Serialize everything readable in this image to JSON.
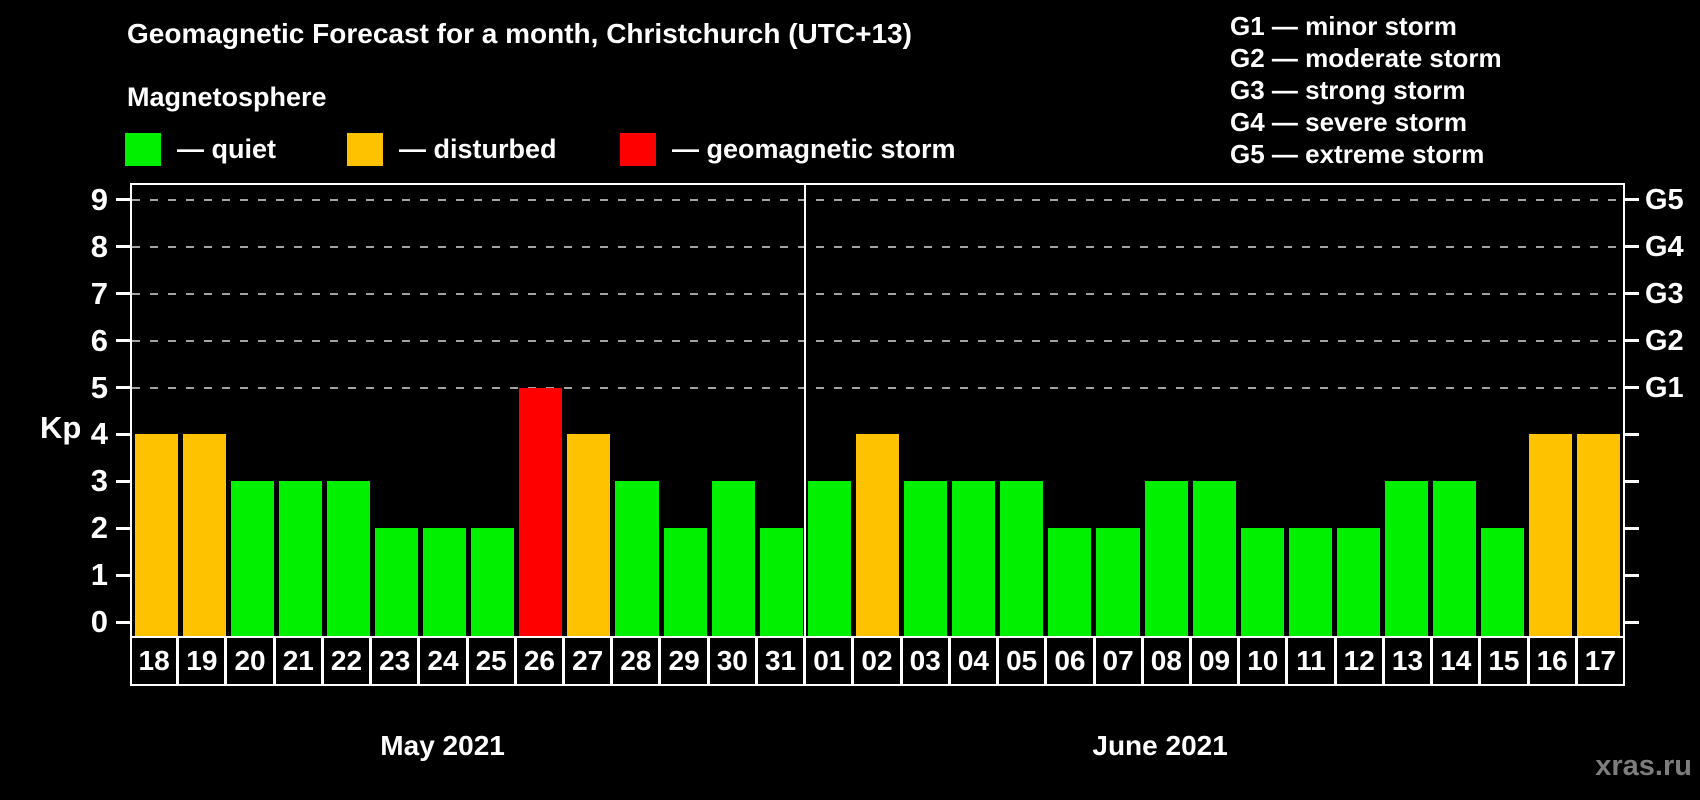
{
  "title": "Geomagnetic Forecast for a month, Christchurch (UTC+13)",
  "subtitle": "Magnetosphere",
  "magnetosphere_legend": [
    {
      "key": "quiet",
      "label": "— quiet",
      "color": "#00f000"
    },
    {
      "key": "disturbed",
      "label": "— disturbed",
      "color": "#ffc200"
    },
    {
      "key": "storm",
      "label": "— geomagnetic storm",
      "color": "#ff0000"
    }
  ],
  "storm_scale_legend": [
    "G1 — minor storm",
    "G2 — moderate storm",
    "G3 — strong storm",
    "G4 — severe storm",
    "G5 — extreme storm"
  ],
  "watermark": "xras.ru",
  "chart_data": {
    "type": "bar",
    "title": "Geomagnetic Forecast for a month, Christchurch (UTC+13)",
    "ylabel": "Kp",
    "yticks": [
      0,
      1,
      2,
      3,
      4,
      5,
      6,
      7,
      8,
      9
    ],
    "ylim": [
      0,
      9.5
    ],
    "grid": "dashed horizontal lines at Kp 5-9 only",
    "gridlines_at_kp": [
      5,
      6,
      7,
      8,
      9
    ],
    "right_axis": [
      {
        "kp": 5,
        "label": "G1"
      },
      {
        "kp": 6,
        "label": "G2"
      },
      {
        "kp": 7,
        "label": "G3"
      },
      {
        "kp": 8,
        "label": "G4"
      },
      {
        "kp": 9,
        "label": "G5"
      }
    ],
    "status_colors": {
      "quiet": "#00f000",
      "disturbed": "#ffc200",
      "storm": "#ff0000"
    },
    "legend_position": "top-left and top-right, outside plot",
    "months": [
      {
        "label": "May 2021",
        "days": [
          {
            "day": "18",
            "kp": 4,
            "status": "disturbed"
          },
          {
            "day": "19",
            "kp": 4,
            "status": "disturbed"
          },
          {
            "day": "20",
            "kp": 3,
            "status": "quiet"
          },
          {
            "day": "21",
            "kp": 3,
            "status": "quiet"
          },
          {
            "day": "22",
            "kp": 3,
            "status": "quiet"
          },
          {
            "day": "23",
            "kp": 2,
            "status": "quiet"
          },
          {
            "day": "24",
            "kp": 2,
            "status": "quiet"
          },
          {
            "day": "25",
            "kp": 2,
            "status": "quiet"
          },
          {
            "day": "26",
            "kp": 5,
            "status": "storm"
          },
          {
            "day": "27",
            "kp": 4,
            "status": "disturbed"
          },
          {
            "day": "28",
            "kp": 3,
            "status": "quiet"
          },
          {
            "day": "29",
            "kp": 2,
            "status": "quiet"
          },
          {
            "day": "30",
            "kp": 3,
            "status": "quiet"
          },
          {
            "day": "31",
            "kp": 2,
            "status": "quiet"
          }
        ]
      },
      {
        "label": "June 2021",
        "days": [
          {
            "day": "01",
            "kp": 3,
            "status": "quiet"
          },
          {
            "day": "02",
            "kp": 4,
            "status": "disturbed"
          },
          {
            "day": "03",
            "kp": 3,
            "status": "quiet"
          },
          {
            "day": "04",
            "kp": 3,
            "status": "quiet"
          },
          {
            "day": "05",
            "kp": 3,
            "status": "quiet"
          },
          {
            "day": "06",
            "kp": 2,
            "status": "quiet"
          },
          {
            "day": "07",
            "kp": 2,
            "status": "quiet"
          },
          {
            "day": "08",
            "kp": 3,
            "status": "quiet"
          },
          {
            "day": "09",
            "kp": 3,
            "status": "quiet"
          },
          {
            "day": "10",
            "kp": 2,
            "status": "quiet"
          },
          {
            "day": "11",
            "kp": 2,
            "status": "quiet"
          },
          {
            "day": "12",
            "kp": 2,
            "status": "quiet"
          },
          {
            "day": "13",
            "kp": 3,
            "status": "quiet"
          },
          {
            "day": "14",
            "kp": 3,
            "status": "quiet"
          },
          {
            "day": "15",
            "kp": 2,
            "status": "quiet"
          },
          {
            "day": "16",
            "kp": 4,
            "status": "disturbed"
          },
          {
            "day": "17",
            "kp": 4,
            "status": "disturbed"
          }
        ]
      }
    ]
  }
}
